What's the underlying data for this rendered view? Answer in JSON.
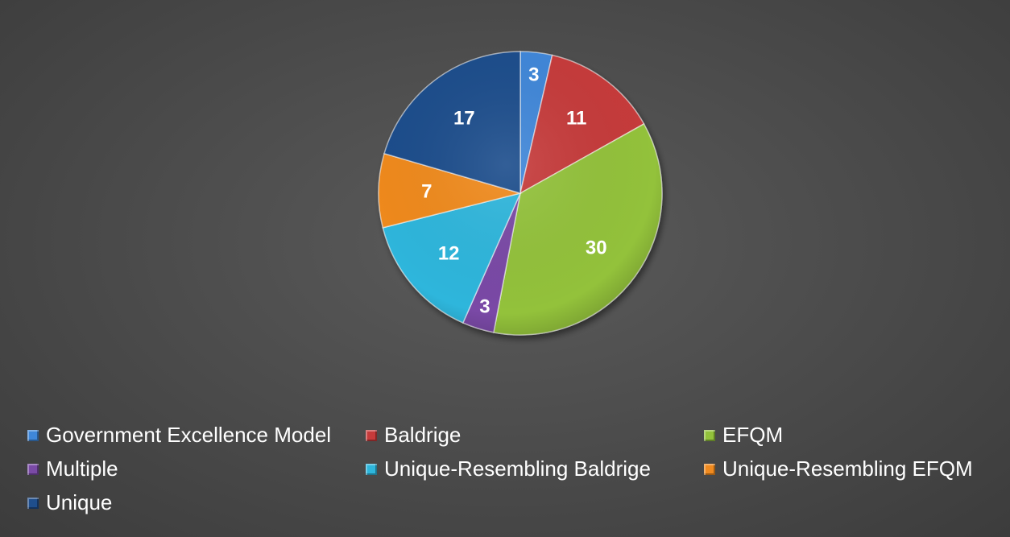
{
  "chart_data": {
    "type": "pie",
    "categories": [
      "Government Excellence Model",
      "Baldrige",
      "EFQM",
      "Multiple",
      "Unique-Resembling Baldrige",
      "Unique-Resembling EFQM",
      "Unique"
    ],
    "values": [
      3,
      11,
      30,
      3,
      12,
      7,
      17
    ],
    "colors": [
      "#3f87d9",
      "#c63b3b",
      "#93c23b",
      "#7a4aa6",
      "#2eb6dc",
      "#f08a1f",
      "#1f4e8c"
    ],
    "legend_position": "bottom",
    "title": ""
  }
}
